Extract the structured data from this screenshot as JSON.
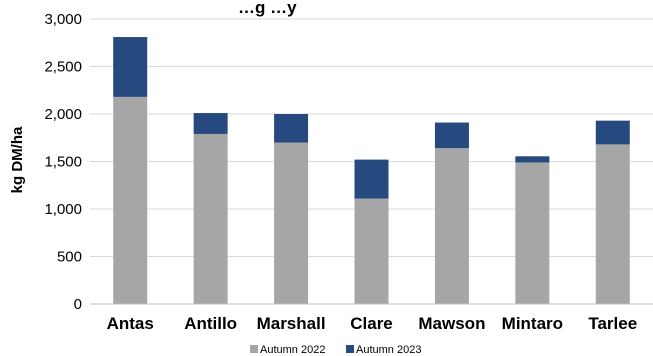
{
  "chart_data": {
    "type": "bar",
    "stacked": true,
    "title": "…g  …y",
    "ylabel": "kg DM/ha",
    "xlabel": "",
    "categories": [
      "Antas",
      "Antillo",
      "Marshall",
      "Clare",
      "Mawson",
      "Mintaro",
      "Tarlee"
    ],
    "series": [
      {
        "name": "Autumn 2022",
        "color": "#a6a6a6",
        "values": [
          2180,
          1790,
          1700,
          1110,
          1640,
          1490,
          1680
        ]
      },
      {
        "name": "Autumn 2023",
        "color": "#264a80",
        "values": [
          630,
          220,
          300,
          410,
          270,
          65,
          250
        ]
      }
    ],
    "ylim": [
      0,
      3000
    ],
    "yticks": [
      0,
      500,
      1000,
      1500,
      2000,
      2500,
      3000
    ],
    "ytick_labels": [
      "0",
      "500",
      "1,000",
      "1,500",
      "2,000",
      "2,500",
      "3,000"
    ],
    "grid": true,
    "legend_position": "bottom"
  }
}
